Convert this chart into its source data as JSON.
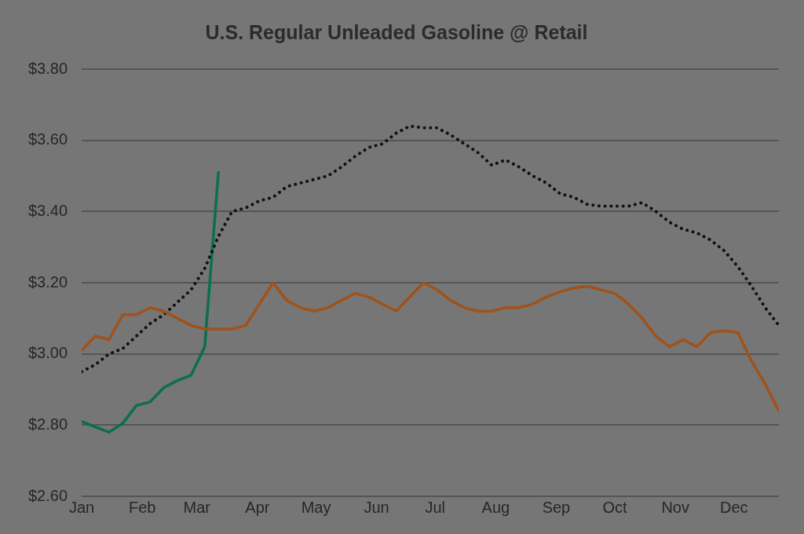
{
  "chart_data": {
    "type": "line",
    "title": "U.S. Regular Unleaded Gasoline @ Retail",
    "x": [
      "--01-01",
      "--01-08",
      "--01-15",
      "--01-22",
      "--01-29",
      "--02-05",
      "--02-12",
      "--02-19",
      "--02-26",
      "--03-05",
      "--03-12",
      "--03-19",
      "--03-26",
      "--04-02",
      "--04-09",
      "--04-16",
      "--04-23",
      "--04-30",
      "--05-07",
      "--05-14",
      "--05-21",
      "--05-28",
      "--06-04",
      "--06-11",
      "--06-18",
      "--06-25",
      "--07-02",
      "--07-09",
      "--07-16",
      "--07-23",
      "--07-30",
      "--08-06",
      "--08-13",
      "--08-20",
      "--08-27",
      "--09-03",
      "--09-10",
      "--09-17",
      "--09-24",
      "--10-01",
      "--10-08",
      "--10-15",
      "--10-22",
      "--10-29",
      "--11-05",
      "--11-12",
      "--11-19",
      "--11-26",
      "--12-03",
      "--12-10",
      "--12-17",
      "--12-24"
    ],
    "series": [
      {
        "color": "#a0521a",
        "line_style": "solid",
        "values": [
          3.01,
          3.05,
          3.04,
          3.11,
          3.11,
          3.13,
          3.12,
          3.1,
          3.08,
          3.07,
          3.07,
          3.07,
          3.08,
          3.14,
          3.2,
          3.15,
          3.13,
          3.12,
          3.13,
          3.15,
          3.17,
          3.16,
          3.14,
          3.12,
          3.16,
          3.2,
          3.18,
          3.15,
          3.13,
          3.12,
          3.12,
          3.13,
          3.13,
          3.14,
          3.16,
          3.175,
          3.185,
          3.19,
          3.18,
          3.17,
          3.14,
          3.1,
          3.05,
          3.02,
          3.04,
          3.02,
          3.06,
          3.065,
          3.06,
          2.98,
          2.915,
          2.84
        ]
      },
      {
        "color": "#111111",
        "line_style": "dotted",
        "values": [
          2.95,
          2.97,
          3.0,
          3.015,
          3.05,
          3.085,
          3.11,
          3.145,
          3.18,
          3.24,
          3.33,
          3.4,
          3.41,
          3.43,
          3.44,
          3.47,
          3.48,
          3.49,
          3.5,
          3.525,
          3.555,
          3.58,
          3.59,
          3.62,
          3.64,
          3.635,
          3.635,
          3.615,
          3.59,
          3.565,
          3.53,
          3.545,
          3.525,
          3.5,
          3.48,
          3.45,
          3.44,
          3.42,
          3.415,
          3.415,
          3.415,
          3.425,
          3.4,
          3.37,
          3.35,
          3.34,
          3.32,
          3.29,
          3.245,
          3.19,
          3.13,
          3.08
        ]
      },
      {
        "color": "#0b6e4f",
        "line_style": "solid",
        "x": [
          "--01-01",
          "--01-08",
          "--01-15",
          "--01-22",
          "--01-29",
          "--02-05",
          "--02-12",
          "--02-19",
          "--02-26",
          "--03-05",
          "--03-12"
        ],
        "values": [
          2.81,
          2.795,
          2.78,
          2.805,
          2.855,
          2.865,
          2.905,
          2.925,
          2.94,
          3.02,
          3.51
        ]
      }
    ],
    "xlim": [
      "--01-01",
      "--12-24"
    ],
    "xticks": [
      {
        "value": "--01-01",
        "label": "Jan"
      },
      {
        "value": "--02-01",
        "label": "Feb"
      },
      {
        "value": "--03-01",
        "label": "Mar"
      },
      {
        "value": "--04-01",
        "label": "Apr"
      },
      {
        "value": "--05-01",
        "label": "May"
      },
      {
        "value": "--06-01",
        "label": "Jun"
      },
      {
        "value": "--07-01",
        "label": "Jul"
      },
      {
        "value": "--08-01",
        "label": "Aug"
      },
      {
        "value": "--09-01",
        "label": "Sep"
      },
      {
        "value": "--10-01",
        "label": "Oct"
      },
      {
        "value": "--11-01",
        "label": "Nov"
      },
      {
        "value": "--12-01",
        "label": "Dec"
      }
    ],
    "ylim": [
      2.6,
      3.8
    ],
    "yticks": [
      {
        "value": 2.6,
        "label": "$2.60"
      },
      {
        "value": 2.8,
        "label": "$2.80"
      },
      {
        "value": 3.0,
        "label": "$3.00"
      },
      {
        "value": 3.2,
        "label": "$3.20"
      },
      {
        "value": 3.4,
        "label": "$3.40"
      },
      {
        "value": 3.6,
        "label": "$3.60"
      },
      {
        "value": 3.8,
        "label": "$3.80"
      }
    ],
    "grid": "y",
    "legend": false,
    "marker": "none"
  }
}
